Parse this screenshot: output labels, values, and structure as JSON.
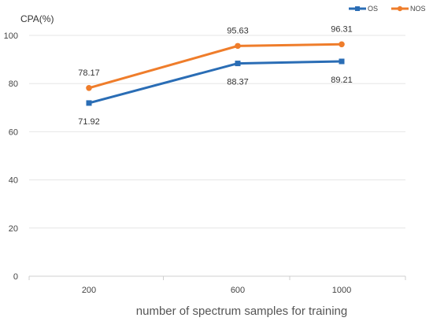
{
  "chart_data": {
    "type": "line",
    "categories": [
      "200",
      "600",
      "1000"
    ],
    "series": [
      {
        "name": "OS",
        "color": "#2a6db5",
        "marker": "square",
        "values": [
          71.92,
          88.37,
          89.21
        ]
      },
      {
        "name": "NOS",
        "color": "#ef7d2b",
        "marker": "circle",
        "values": [
          78.17,
          95.63,
          96.31
        ]
      }
    ],
    "ylabel": "CPA(%)",
    "xlabel": "number of spectrum samples for training",
    "ylim": [
      0,
      100
    ],
    "yticks": [
      0,
      20,
      40,
      60,
      80,
      100
    ],
    "grid": true,
    "legend": "top-right"
  }
}
